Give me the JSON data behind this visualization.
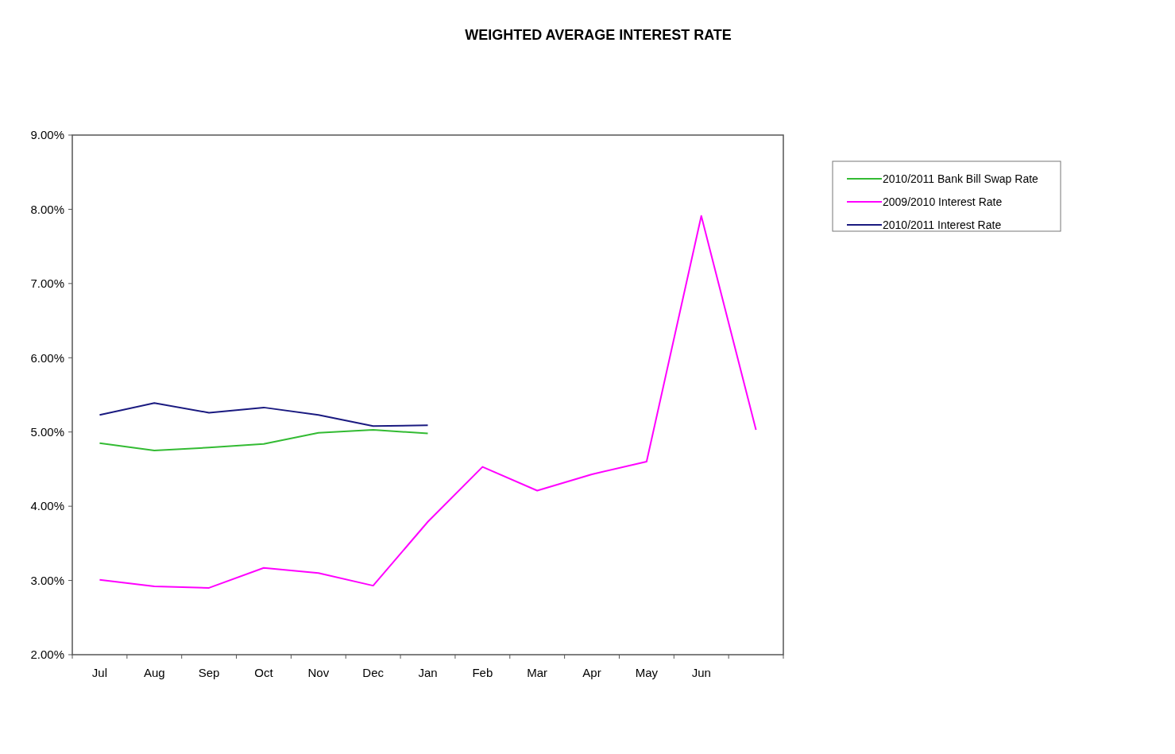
{
  "chart_data": {
    "type": "line",
    "title": "WEIGHTED AVERAGE INTEREST RATE",
    "categories": [
      "Jul",
      "Aug",
      "Sep",
      "Oct",
      "Nov",
      "Dec",
      "Jan",
      "Feb",
      "Mar",
      "Apr",
      "May",
      "Jun",
      null
    ],
    "series": [
      {
        "name": "2010/2011 Bank Bill Swap Rate",
        "color": "#33bb33",
        "values": [
          4.85,
          4.75,
          4.79,
          4.84,
          4.99,
          5.03,
          4.98,
          null,
          null,
          null,
          null,
          null,
          null
        ]
      },
      {
        "name": "2009/2010 Interest Rate",
        "color": "#ff00ff",
        "values": [
          3.01,
          2.92,
          2.9,
          3.17,
          3.1,
          2.93,
          3.79,
          4.53,
          4.21,
          4.43,
          4.6,
          7.91,
          5.03
        ]
      },
      {
        "name": "2010/2011 Interest Rate",
        "color": "#1a1a80",
        "values": [
          5.23,
          5.39,
          5.26,
          5.33,
          5.23,
          5.08,
          5.09,
          null,
          null,
          null,
          null,
          null,
          null
        ]
      }
    ],
    "ylim": [
      2,
      9
    ],
    "yticks": [
      {
        "value": 2,
        "label": "2.00%"
      },
      {
        "value": 3,
        "label": "3.00%"
      },
      {
        "value": 4,
        "label": "4.00%"
      },
      {
        "value": 5,
        "label": "5.00%"
      },
      {
        "value": 6,
        "label": "6.00%"
      },
      {
        "value": 7,
        "label": "7.00%"
      },
      {
        "value": 8,
        "label": "8.00%"
      },
      {
        "value": 9,
        "label": "9.00%"
      }
    ],
    "grid": false,
    "legend": "right",
    "marker": "none",
    "line_style": "solid"
  }
}
